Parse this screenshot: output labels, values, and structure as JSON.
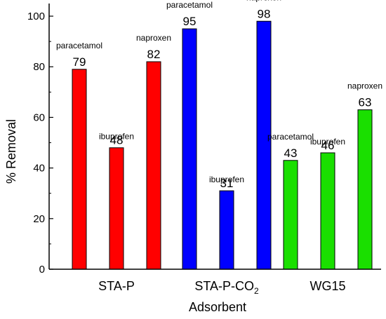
{
  "chart_data": {
    "type": "bar",
    "title": "",
    "xlabel": "Adsorbent",
    "ylabel": "% Removal",
    "ylim": [
      0,
      105
    ],
    "yticks": [
      0,
      20,
      40,
      60,
      80,
      100
    ],
    "grid": false,
    "legend": "none",
    "groups": [
      {
        "label": "STA-P",
        "label_main": "STA-P",
        "label_sub": "",
        "bars": [
          {
            "drug": "paracetamol",
            "value": 79,
            "color": "#ff0000"
          },
          {
            "drug": "ibuprofen",
            "value": 48,
            "color": "#ff0000"
          },
          {
            "drug": "naproxen",
            "value": 82,
            "color": "#ff0000"
          }
        ]
      },
      {
        "label": "STA-P-CO2",
        "label_main": "STA-P-CO",
        "label_sub": "2",
        "bars": [
          {
            "drug": "paracetamol",
            "value": 95,
            "color": "#0000ff"
          },
          {
            "drug": "ibuprofen",
            "value": 31,
            "color": "#0000ff"
          },
          {
            "drug": "naproxen",
            "value": 98,
            "color": "#0000ff"
          }
        ]
      },
      {
        "label": "WG15",
        "label_main": "WG15",
        "label_sub": "",
        "bars": [
          {
            "drug": "paracetamol",
            "value": 43,
            "color": "#1adf00"
          },
          {
            "drug": "ibuprofen",
            "value": 46,
            "color": "#1adf00"
          },
          {
            "drug": "naproxen",
            "value": 63,
            "color": "#1adf00"
          }
        ]
      }
    ]
  }
}
